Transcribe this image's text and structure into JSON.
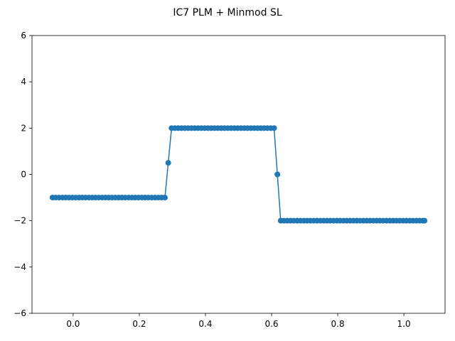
{
  "chart_data": {
    "type": "line",
    "title": "IC7 PLM + Minmod SL",
    "xlabel": "",
    "ylabel": "",
    "xlim": [
      -0.1245,
      1.1245
    ],
    "ylim": [
      -6,
      6
    ],
    "grid": false,
    "xticks": [
      0.0,
      0.2,
      0.4,
      0.6,
      0.8,
      1.0
    ],
    "xtick_labels": [
      "0.0",
      "0.2",
      "0.4",
      "0.6",
      "0.8",
      "1.0"
    ],
    "yticks": [
      -6,
      -4,
      -2,
      0,
      2,
      4,
      6
    ],
    "ytick_labels": [
      "−6",
      "−4",
      "−2",
      "0",
      "2",
      "4",
      "6"
    ],
    "series": [
      {
        "name": "",
        "color": "#1f77b4",
        "marker": "circle",
        "x": [
          -0.0625,
          -0.0525,
          -0.0425,
          -0.0325,
          -0.0225,
          -0.0125,
          -0.0025,
          0.0075,
          0.0175,
          0.0275,
          0.0375,
          0.0475,
          0.0575,
          0.0675,
          0.0775,
          0.0875,
          0.0975,
          0.1075,
          0.1175,
          0.1275,
          0.1375,
          0.1475,
          0.1575,
          0.1675,
          0.1775,
          0.1875,
          0.1975,
          0.2075,
          0.2175,
          0.2275,
          0.2375,
          0.2475,
          0.2575,
          0.2675,
          0.2775,
          0.2875,
          0.2975,
          0.3075,
          0.3175,
          0.3275,
          0.3375,
          0.3475,
          0.3575,
          0.3675,
          0.3775,
          0.3875,
          0.3975,
          0.4075,
          0.4175,
          0.4275,
          0.4375,
          0.4475,
          0.4575,
          0.4675,
          0.4775,
          0.4875,
          0.4975,
          0.5075,
          0.5175,
          0.5275,
          0.5375,
          0.5475,
          0.5575,
          0.5675,
          0.5775,
          0.5875,
          0.5975,
          0.6075,
          0.6175,
          0.6275,
          0.6375,
          0.6475,
          0.6575,
          0.6675,
          0.6775,
          0.6875,
          0.6975,
          0.7075,
          0.7175,
          0.7275,
          0.7375,
          0.7475,
          0.7575,
          0.7675,
          0.7775,
          0.7875,
          0.7975,
          0.8075,
          0.8175,
          0.8275,
          0.8375,
          0.8475,
          0.8575,
          0.8675,
          0.8775,
          0.8875,
          0.8975,
          0.9075,
          0.9175,
          0.9275,
          0.9375,
          0.9475,
          0.9575,
          0.9675,
          0.9775,
          0.9875,
          0.9975,
          1.0075,
          1.0175,
          1.0275,
          1.0375,
          1.0475,
          1.0575,
          1.0625
        ],
        "y": [
          -1,
          -1,
          -1,
          -1,
          -1,
          -1,
          -1,
          -1,
          -1,
          -1,
          -1,
          -1,
          -1,
          -1,
          -1,
          -1,
          -1,
          -1,
          -1,
          -1,
          -1,
          -1,
          -1,
          -1,
          -1,
          -1,
          -1,
          -1,
          -1,
          -1,
          -1,
          -1,
          -1,
          -1,
          -1,
          0.5,
          2,
          2,
          2,
          2,
          2,
          2,
          2,
          2,
          2,
          2,
          2,
          2,
          2,
          2,
          2,
          2,
          2,
          2,
          2,
          2,
          2,
          2,
          2,
          2,
          2,
          2,
          2,
          2,
          2,
          2,
          2,
          2,
          0,
          -2,
          -2,
          -2,
          -2,
          -2,
          -2,
          -2,
          -2,
          -2,
          -2,
          -2,
          -2,
          -2,
          -2,
          -2,
          -2,
          -2,
          -2,
          -2,
          -2,
          -2,
          -2,
          -2,
          -2,
          -2,
          -2,
          -2,
          -2,
          -2,
          -2,
          -2,
          -2,
          -2,
          -2,
          -2,
          -2,
          -2,
          -2,
          -2,
          -2,
          -2,
          -2,
          -2,
          -2,
          -2
        ]
      }
    ]
  }
}
